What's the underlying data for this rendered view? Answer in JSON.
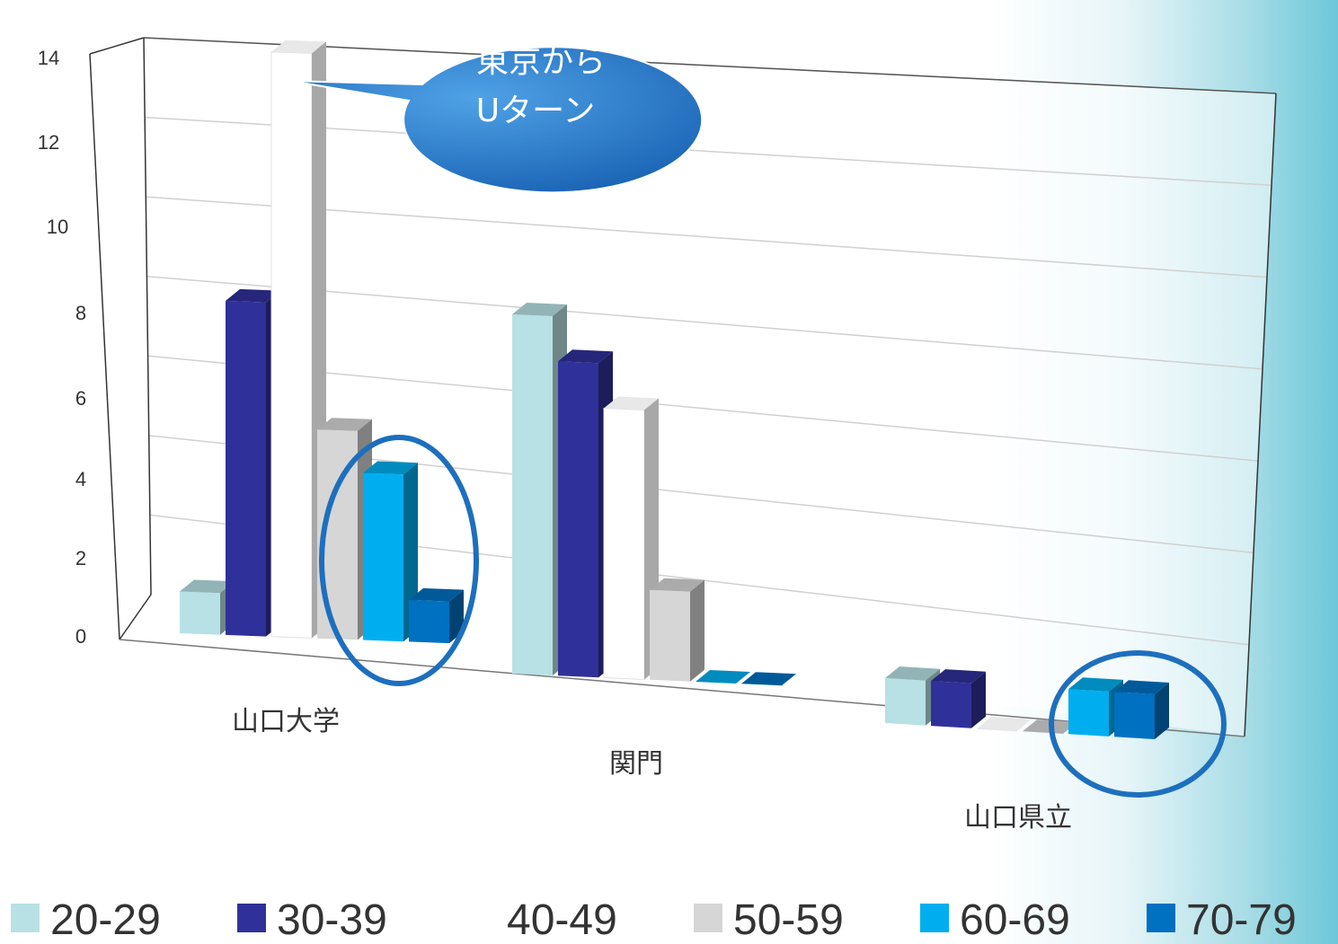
{
  "chart_data": {
    "type": "bar",
    "style": "3d-clustered-column",
    "categories": [
      "山口大学",
      "関門",
      "山口県立"
    ],
    "series": [
      {
        "name": "20-29",
        "color": "#b7e1e4",
        "values": [
          1,
          8,
          1
        ]
      },
      {
        "name": "30-39",
        "color": "#30309a",
        "values": [
          8,
          7,
          1
        ]
      },
      {
        "name": "40-49",
        "color": "#ffffff",
        "values": [
          14,
          6,
          0
        ]
      },
      {
        "name": "50-59",
        "color": "#d6d6d6",
        "values": [
          5,
          2,
          0
        ]
      },
      {
        "name": "60-69",
        "color": "#00aeef",
        "values": [
          4,
          0,
          1
        ]
      },
      {
        "name": "70-79",
        "color": "#0070c0",
        "values": [
          1,
          0,
          1
        ]
      }
    ],
    "yticks": [
      "0",
      "2",
      "4",
      "6",
      "8",
      "10",
      "12",
      "14"
    ],
    "ylim": [
      0,
      14
    ],
    "grid": true,
    "legend_position": "bottom",
    "title": "",
    "xlabel": "",
    "ylabel": "",
    "annotation": {
      "text_lines": [
        "東京から",
        "Uターン"
      ],
      "color": "#1f73c6"
    },
    "highlight_color": "#1d6fbe"
  }
}
